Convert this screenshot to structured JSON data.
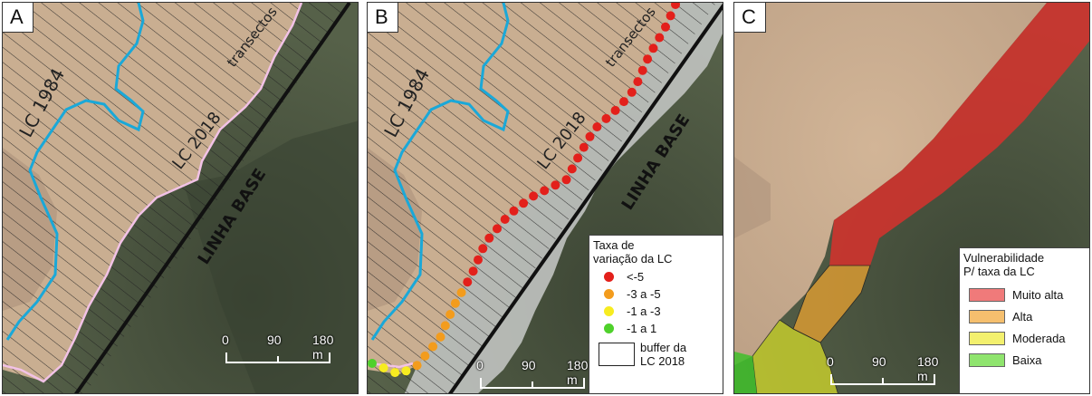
{
  "panels": {
    "a": {
      "label": "A",
      "transect_label": "transectos",
      "lc1984_label": "LC 1984",
      "lc2018_label": "LC 2018",
      "baseline_label": "LINHA BASE",
      "scale_ticks": [
        "0",
        "90",
        "180 m"
      ]
    },
    "b": {
      "label": "B",
      "transect_label": "transectos",
      "lc1984_label": "LC 1984",
      "lc2018_label": "LC 2018",
      "baseline_label": "LINHA BASE",
      "scale_ticks": [
        "0",
        "90",
        "180 m"
      ],
      "legend": {
        "title_line1": "Taxa de",
        "title_line2": "variação da LC",
        "items": [
          {
            "label": "<-5",
            "color": "#e3201b"
          },
          {
            "label": "-3 a -5",
            "color": "#f39c1d"
          },
          {
            "label": "-1 a -3",
            "color": "#f7ec20"
          },
          {
            "label": "-1 a 1",
            "color": "#4fd12b"
          }
        ],
        "buffer_line1": "buffer da",
        "buffer_line2": "LC 2018"
      }
    },
    "c": {
      "label": "C",
      "scale_ticks": [
        "0",
        "90",
        "180 m"
      ],
      "legend": {
        "title_line1": "Vulnerabilidade",
        "title_line2": "P/ taxa da LC",
        "items": [
          {
            "label": "Muito alta",
            "color": "#f07a7a"
          },
          {
            "label": "Alta",
            "color": "#f5bf6e"
          },
          {
            "label": "Moderada",
            "color": "#f3f06e"
          },
          {
            "label": "Baixa",
            "color": "#8fe46e"
          }
        ]
      }
    }
  },
  "colors": {
    "sand": "#c9ae91",
    "vegetation": "#4a5440",
    "lc1984_line": "#1aa8d8",
    "lc2018_line": "#f2c2e6",
    "buffer_fill": "#c4c6c4"
  },
  "dot_groups": {
    "red_count": 30,
    "orange_count": 8,
    "yellow_count": 3,
    "green_count": 1
  }
}
